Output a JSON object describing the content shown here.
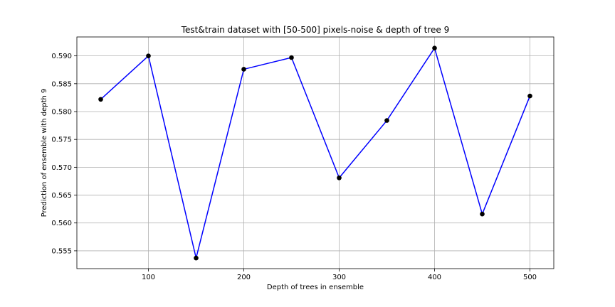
{
  "chart_data": {
    "type": "line",
    "title": "Test&train dataset with [50-500] pixels-noise & depth of tree 9",
    "xlabel": "Depth of trees in ensemble",
    "ylabel": "Prediction of ensemble with depth 9",
    "x": [
      50,
      100,
      150,
      200,
      250,
      300,
      350,
      400,
      450,
      500
    ],
    "series": [
      {
        "values": [
          0.5822,
          0.59,
          0.5537,
          0.5876,
          0.5897,
          0.5681,
          0.5784,
          0.5914,
          0.5616,
          0.5828
        ],
        "line_color": "#0000ff",
        "marker_color": "#000000"
      }
    ],
    "xlim": [
      25,
      525
    ],
    "ylim": [
      0.5518,
      0.5934
    ],
    "xticks": [
      100,
      200,
      300,
      400,
      500
    ],
    "yticks": [
      0.555,
      0.56,
      0.565,
      0.57,
      0.575,
      0.58,
      0.585,
      0.59
    ],
    "xtick_labels": [
      "100",
      "200",
      "300",
      "400",
      "500"
    ],
    "ytick_labels": [
      "0.555",
      "0.560",
      "0.565",
      "0.570",
      "0.575",
      "0.580",
      "0.585",
      "0.590"
    ],
    "grid": true
  }
}
